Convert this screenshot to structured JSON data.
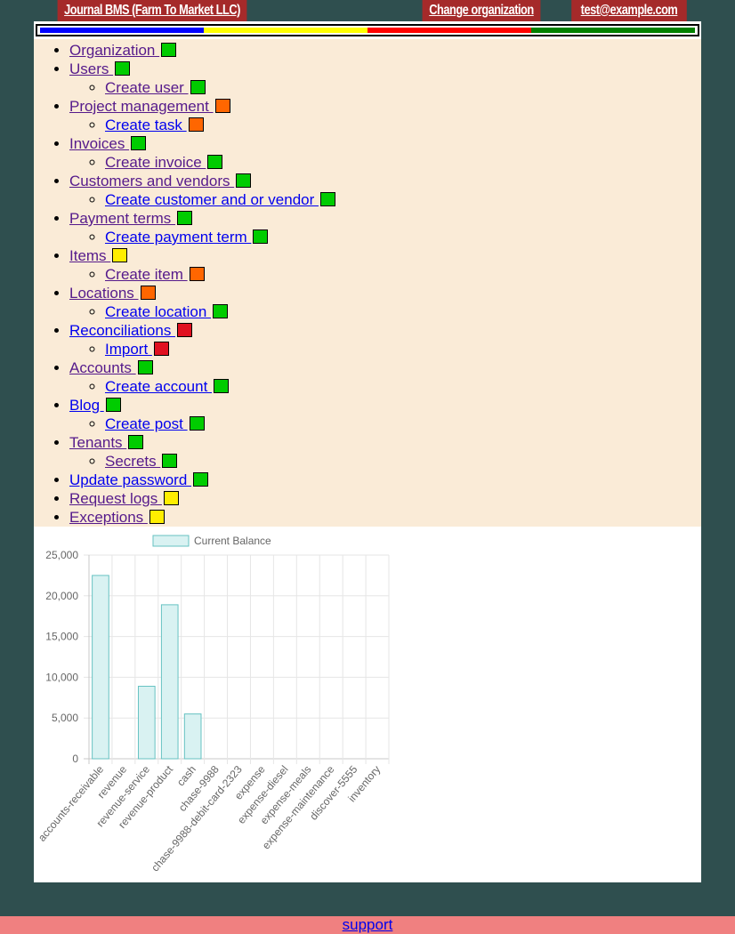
{
  "header": {
    "title": "Journal BMS (Farm To Market LLC)",
    "org_link": "Change organization",
    "user_email": "test@example.com"
  },
  "status_bar": {
    "colors": [
      "#0000ff",
      "#ffff00",
      "#ff0000",
      "#008000"
    ]
  },
  "nav": {
    "items": [
      {
        "label": "Organization",
        "status": "green",
        "visited": true,
        "children": []
      },
      {
        "label": "Users",
        "status": "green",
        "visited": true,
        "children": [
          {
            "label": "Create user",
            "status": "green",
            "visited": true
          }
        ]
      },
      {
        "label": "Project management",
        "status": "orange",
        "visited": true,
        "children": [
          {
            "label": "Create task",
            "status": "orange",
            "visited": false
          }
        ]
      },
      {
        "label": "Invoices",
        "status": "green",
        "visited": true,
        "children": [
          {
            "label": "Create invoice",
            "status": "green",
            "visited": true
          }
        ]
      },
      {
        "label": "Customers and vendors",
        "status": "green",
        "visited": true,
        "children": [
          {
            "label": "Create customer and or vendor",
            "status": "green",
            "visited": false
          }
        ]
      },
      {
        "label": "Payment terms",
        "status": "green",
        "visited": true,
        "children": [
          {
            "label": "Create payment term",
            "status": "green",
            "visited": false
          }
        ]
      },
      {
        "label": "Items",
        "status": "yellow",
        "visited": true,
        "children": [
          {
            "label": "Create item",
            "status": "orange",
            "visited": true
          }
        ]
      },
      {
        "label": "Locations",
        "status": "orange",
        "visited": true,
        "children": [
          {
            "label": "Create location",
            "status": "green",
            "visited": false
          }
        ]
      },
      {
        "label": "Reconciliations",
        "status": "red",
        "visited": false,
        "children": [
          {
            "label": "Import",
            "status": "red",
            "visited": false
          }
        ]
      },
      {
        "label": "Accounts",
        "status": "green",
        "visited": true,
        "children": [
          {
            "label": "Create account",
            "status": "green",
            "visited": false
          }
        ]
      },
      {
        "label": "Blog",
        "status": "green",
        "visited": false,
        "children": [
          {
            "label": "Create post",
            "status": "green",
            "visited": false
          }
        ]
      },
      {
        "label": "Tenants",
        "status": "green",
        "visited": true,
        "children": [
          {
            "label": "Secrets",
            "status": "green",
            "visited": true
          }
        ]
      },
      {
        "label": "Update password",
        "status": "green",
        "visited": false,
        "children": []
      },
      {
        "label": "Request logs",
        "status": "yellow",
        "visited": true,
        "children": []
      },
      {
        "label": "Exceptions",
        "status": "yellow",
        "visited": true,
        "children": []
      }
    ]
  },
  "chart_data": {
    "type": "bar",
    "title": "",
    "legend": "top",
    "grid": true,
    "categories": [
      "accounts-receivable",
      "revenue",
      "revenue-service",
      "revenue-product",
      "cash",
      "chase-9988",
      "chase-9988-debit-card-2323",
      "expense",
      "expense-diesel",
      "expense-meals",
      "expense-maintenance",
      "discover-5555",
      "inventory"
    ],
    "series": [
      {
        "name": "Current Balance",
        "values": [
          22500,
          0,
          8900,
          18900,
          5500,
          0,
          0,
          0,
          0,
          0,
          0,
          0,
          0
        ]
      }
    ],
    "ylim": [
      0,
      25000
    ],
    "yticks": [
      "25,000",
      "20,000",
      "15,000",
      "10,000",
      "5,000",
      "0"
    ],
    "ytick_values": [
      25000,
      20000,
      15000,
      10000,
      5000,
      0
    ],
    "colors": {
      "fill": "#d9f2f2",
      "stroke": "#66c2c2"
    }
  },
  "footer": {
    "support_label": "support"
  }
}
